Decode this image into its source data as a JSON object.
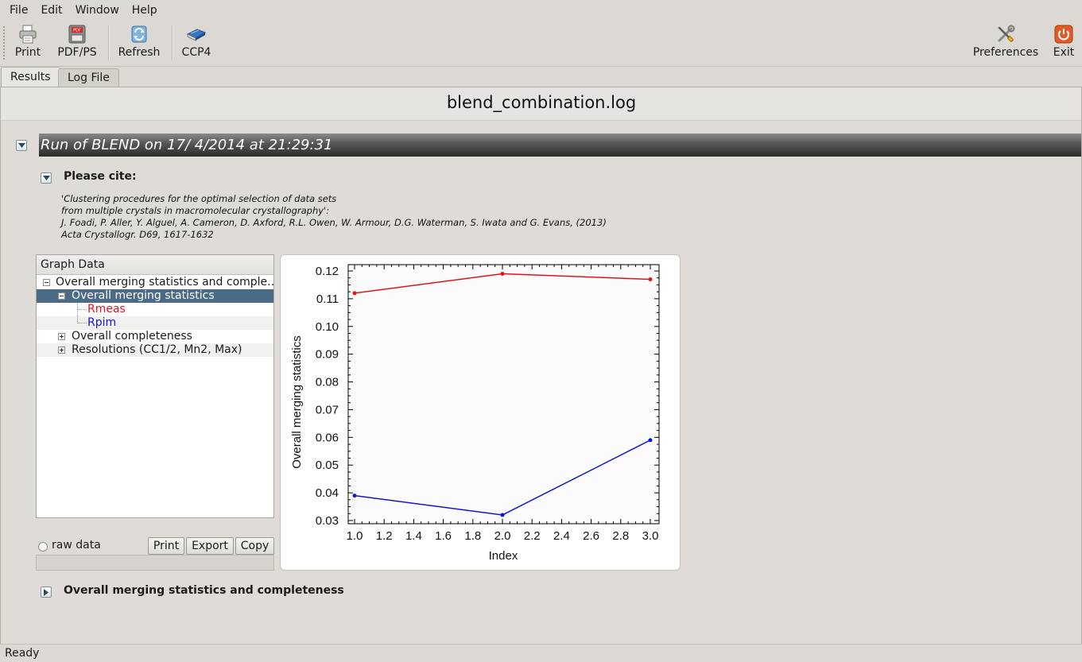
{
  "menu": {
    "items": [
      {
        "label": "File"
      },
      {
        "label": "Edit"
      },
      {
        "label": "Window"
      },
      {
        "label": "Help"
      }
    ]
  },
  "toolbar": {
    "print_label": "Print",
    "pdf_label": "PDF/PS",
    "refresh_label": "Refresh",
    "ccp4_label": "CCP4",
    "preferences_label": "Preferences",
    "exit_label": "Exit"
  },
  "tabs": [
    {
      "label": "Results",
      "active": true
    },
    {
      "label": "Log File",
      "active": false
    }
  ],
  "page_title": "blend_combination.log",
  "run_section": {
    "title": "Run of BLEND on 17/ 4/2014 at 21:29:31"
  },
  "citation": {
    "heading": "Please cite:",
    "lines": [
      "'Clustering procedures for the optimal selection of data sets",
      "from multiple crystals in macromolecular crystallography':",
      "J. Foadi, P. Aller, Y. Alguel, A. Cameron, D. Axford, R.L. Owen, W. Armour, D.G. Waterman, S. Iwata and G. Evans, (2013)",
      "Acta Crystallogr. D69, 1617-1632"
    ]
  },
  "graph_panel": {
    "header": "Graph Data",
    "tree": {
      "root": "Overall merging statistics and comple…",
      "selected": "Overall merging statistics",
      "series_1": "Rmeas",
      "series_2": "Rpim",
      "item_completeness": "Overall completeness",
      "item_resolutions": "Resolutions (CC1/2, Mn2, Max)"
    },
    "raw_data_label": "raw data",
    "print_btn": "Print",
    "export_btn": "Export",
    "copy_btn": "Copy"
  },
  "bottom_section": {
    "heading": "Overall merging statistics and completeness"
  },
  "status": "Ready",
  "colors": {
    "rmeas": "#e0141c",
    "rpim": "#1414d2",
    "selected_row": "#4b6a86"
  },
  "chart_data": {
    "type": "line",
    "title": "",
    "xlabel": "Index",
    "ylabel": "Overall merging statistics",
    "xlim": [
      1.0,
      3.0
    ],
    "ylim": [
      0.03,
      0.12
    ],
    "xticks": [
      "1.0",
      "1.2",
      "1.4",
      "1.6",
      "1.8",
      "2.0",
      "2.2",
      "2.4",
      "2.6",
      "2.8",
      "3.0"
    ],
    "yticks": [
      "0.03",
      "0.04",
      "0.05",
      "0.06",
      "0.07",
      "0.08",
      "0.09",
      "0.10",
      "0.11",
      "0.12"
    ],
    "x": [
      1.0,
      2.0,
      3.0
    ],
    "series": [
      {
        "name": "Rmeas",
        "color": "#e0141c",
        "values": [
          0.112,
          0.119,
          0.117
        ]
      },
      {
        "name": "Rpim",
        "color": "#1414d2",
        "values": [
          0.039,
          0.032,
          0.059
        ]
      }
    ],
    "grid": false
  }
}
